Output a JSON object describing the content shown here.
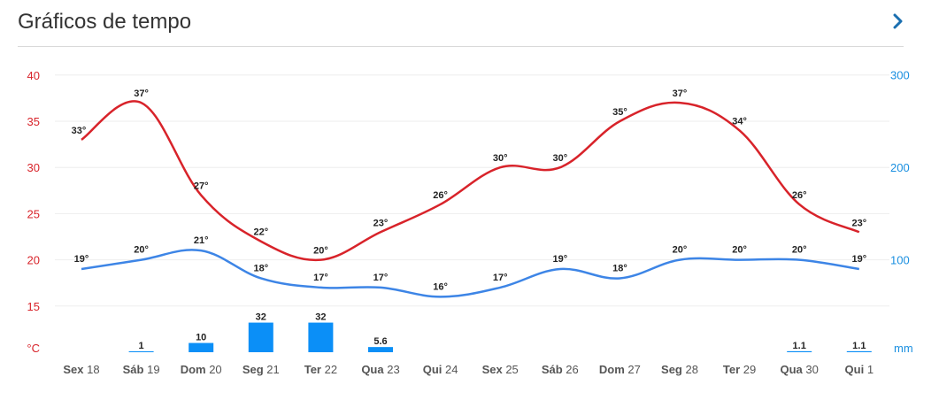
{
  "header": {
    "title": "Gráficos de tempo",
    "next_icon": "chevron-right-icon"
  },
  "colors": {
    "max": "#d8232a",
    "min": "#3d85e6",
    "precip": "#0b8ff7",
    "grid": "#eeeeee"
  },
  "chart_data": {
    "type": "line",
    "categories": [
      {
        "day": "Sex",
        "num": "18"
      },
      {
        "day": "Sáb",
        "num": "19"
      },
      {
        "day": "Dom",
        "num": "20"
      },
      {
        "day": "Seg",
        "num": "21"
      },
      {
        "day": "Ter",
        "num": "22"
      },
      {
        "day": "Qua",
        "num": "23"
      },
      {
        "day": "Qui",
        "num": "24"
      },
      {
        "day": "Sex",
        "num": "25"
      },
      {
        "day": "Sáb",
        "num": "26"
      },
      {
        "day": "Dom",
        "num": "27"
      },
      {
        "day": "Seg",
        "num": "28"
      },
      {
        "day": "Ter",
        "num": "29"
      },
      {
        "day": "Qua",
        "num": "30"
      },
      {
        "day": "Qui",
        "num": "1"
      }
    ],
    "series": [
      {
        "values": [
          33,
          37,
          27,
          22,
          20,
          23,
          26,
          30,
          30,
          35,
          37,
          34,
          26,
          23
        ],
        "labels": [
          "33°",
          "37°",
          "27°",
          "22°",
          "20°",
          "23°",
          "26°",
          "30°",
          "30°",
          "35°",
          "37°",
          "34°",
          "26°",
          "23°"
        ]
      },
      {
        "values": [
          19,
          20,
          21,
          18,
          17,
          17,
          16,
          17,
          19,
          18,
          20,
          20,
          20,
          19
        ],
        "labels": [
          "19°",
          "20°",
          "21°",
          "18°",
          "17°",
          "17°",
          "16°",
          "17°",
          "19°",
          "18°",
          "20°",
          "20°",
          "20°",
          "19°"
        ]
      },
      {
        "type": "bar",
        "values": [
          0,
          1,
          10,
          32,
          32,
          5.6,
          0,
          0,
          0,
          0,
          0,
          0,
          1.1,
          1.1
        ],
        "labels": [
          "",
          "1",
          "10",
          "32",
          "32",
          "5.6",
          "",
          "",
          "",
          "",
          "",
          "",
          "1.1",
          "1.1"
        ]
      }
    ],
    "y_left": {
      "ticks": [
        "40",
        "35",
        "30",
        "25",
        "20",
        "15"
      ],
      "unit": "°C",
      "ylim": [
        10,
        40
      ]
    },
    "y_right": {
      "ticks": [
        "300",
        "200",
        "100"
      ],
      "unit": "mm",
      "ylim": [
        0,
        300
      ]
    },
    "grid": true
  }
}
